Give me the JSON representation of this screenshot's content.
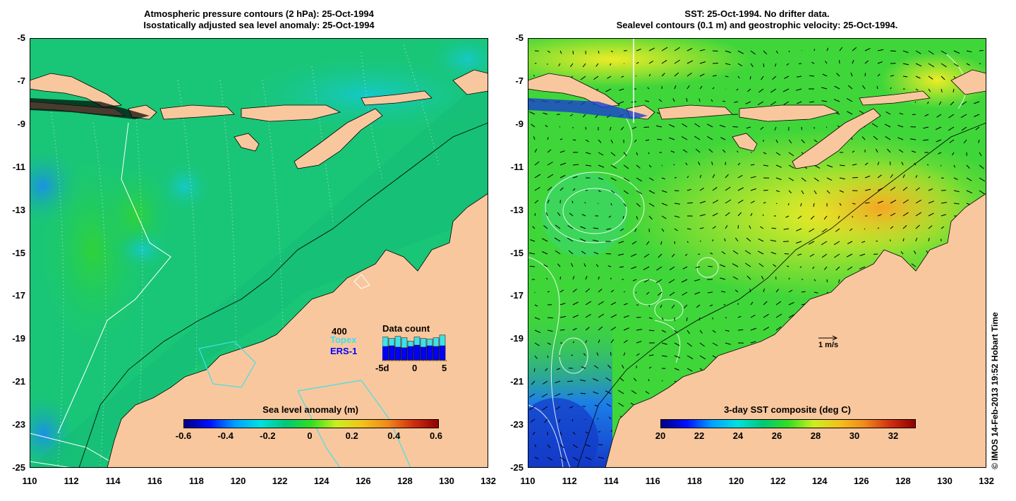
{
  "left_title": {
    "line1": "Atmospheric pressure contours (2 hPa): 25-Oct-1994",
    "line2": "Isostatically adjusted sea level anomaly: 25-Oct-1994"
  },
  "right_title": {
    "line1": "SST: 25-Oct-1994. No drifter data.",
    "line2": "Sealevel contours (0.1 m) and geostrophic velocity: 25-Oct-1994."
  },
  "axes": {
    "lat_labels": [
      "-5",
      "-7",
      "-9",
      "-11",
      "-13",
      "-15",
      "-17",
      "-19",
      "-21",
      "-23",
      "-25"
    ],
    "lon_labels": [
      "110",
      "112",
      "114",
      "116",
      "118",
      "120",
      "122",
      "124",
      "126",
      "128",
      "130",
      "132"
    ]
  },
  "left_colorbar": {
    "title": "Sea level anomaly (m)",
    "ticks": [
      "-0.6",
      "-0.4",
      "-0.2",
      "0",
      "0.2",
      "0.4",
      "0.6"
    ]
  },
  "right_colorbar": {
    "title": "3-day SST composite (deg C)",
    "ticks": [
      "20",
      "22",
      "24",
      "26",
      "28",
      "30",
      "32"
    ]
  },
  "data_count": {
    "title": "Data count",
    "max_label": "400",
    "topex_label": "Topex",
    "ers_label": "ERS-1",
    "x_labels": [
      "-5d",
      "0",
      "5"
    ],
    "topex_counts": [
      340,
      320,
      350,
      330,
      280,
      340,
      320,
      310,
      330,
      370
    ],
    "ers_counts": [
      200,
      210,
      190,
      180,
      200,
      220,
      190,
      210,
      200,
      210
    ],
    "colors": {
      "topex": "#40e0e8",
      "ers": "#0000ff"
    }
  },
  "velocity_scale": "1 m/s",
  "credit": "© IMOS 14-Feb-2013 19:52 Hobart Time",
  "colors": {
    "land": "#f9c79d",
    "ssh_ocean": "#19c677",
    "sst_ocean": "#3fd63a"
  }
}
